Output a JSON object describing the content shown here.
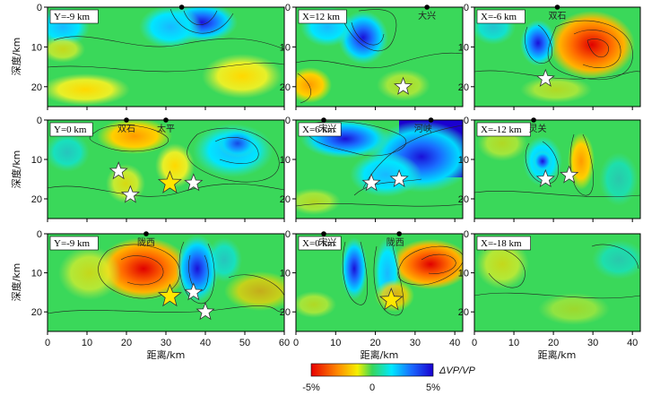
{
  "figure": {
    "ylabel": "深度/km",
    "xlabel": "距离/km",
    "colorbar": {
      "min_label": "-5%",
      "mid_label": "0",
      "max_label": "5%",
      "title": "ΔVP/VP"
    }
  },
  "chart_data": [
    {
      "type": "heatmap",
      "row": 0,
      "col": 0,
      "label": "Y=-9 km",
      "xlim": [
        0,
        60
      ],
      "ylim": [
        0,
        25
      ],
      "stations": [
        34
      ],
      "places": [],
      "events": []
    },
    {
      "type": "heatmap",
      "row": 0,
      "col": 1,
      "label": "X=12 km",
      "xlim": [
        0,
        42
      ],
      "ylim": [
        0,
        25
      ],
      "stations": [
        33
      ],
      "places": [
        {
          "text": "大兴",
          "x": 33
        }
      ],
      "events": [
        {
          "x": 27,
          "y": 20,
          "color": "white"
        }
      ]
    },
    {
      "type": "heatmap",
      "row": 0,
      "col": 2,
      "label": "X=-6 km",
      "xlim": [
        0,
        42
      ],
      "ylim": [
        0,
        25
      ],
      "stations": [
        21
      ],
      "places": [
        {
          "text": "双石",
          "x": 21
        }
      ],
      "events": [
        {
          "x": 18,
          "y": 18,
          "color": "white"
        }
      ]
    },
    {
      "type": "heatmap",
      "row": 1,
      "col": 0,
      "label": "Y=0 km",
      "xlim": [
        0,
        60
      ],
      "ylim": [
        0,
        25
      ],
      "stations": [
        20,
        30
      ],
      "places": [
        {
          "text": "双石",
          "x": 20
        },
        {
          "text": "太平",
          "x": 30
        }
      ],
      "events": [
        {
          "x": 18,
          "y": 13,
          "color": "white"
        },
        {
          "x": 21,
          "y": 19,
          "color": "white"
        },
        {
          "x": 31,
          "y": 16,
          "color": "yellow"
        },
        {
          "x": 37,
          "y": 16,
          "color": "white"
        }
      ]
    },
    {
      "type": "heatmap",
      "row": 1,
      "col": 1,
      "label": "X=6 km",
      "xlim": [
        0,
        42
      ],
      "ylim": [
        0,
        25
      ],
      "stations": [
        7,
        34
      ],
      "places": [
        {
          "text": "宋兴",
          "x": 8
        },
        {
          "text": "河峡",
          "x": 32
        }
      ],
      "events": [
        {
          "x": 19,
          "y": 16,
          "color": "white"
        },
        {
          "x": 26,
          "y": 15,
          "color": "white"
        }
      ]
    },
    {
      "type": "heatmap",
      "row": 1,
      "col": 2,
      "label": "X=-12 km",
      "xlim": [
        0,
        42
      ],
      "ylim": [
        0,
        25
      ],
      "stations": [
        15
      ],
      "places": [
        {
          "text": "灵关",
          "x": 16
        }
      ],
      "events": [
        {
          "x": 18,
          "y": 15,
          "color": "white"
        },
        {
          "x": 24,
          "y": 14,
          "color": "white"
        }
      ]
    },
    {
      "type": "heatmap",
      "row": 2,
      "col": 0,
      "label": "Y=-9 km",
      "xlim": [
        0,
        60
      ],
      "ylim": [
        0,
        25
      ],
      "stations": [
        25
      ],
      "places": [
        {
          "text": "陇西",
          "x": 25
        }
      ],
      "events": [
        {
          "x": 31,
          "y": 16,
          "color": "yellow"
        },
        {
          "x": 37,
          "y": 15,
          "color": "white"
        },
        {
          "x": 40,
          "y": 20,
          "color": "white"
        }
      ]
    },
    {
      "type": "heatmap",
      "row": 2,
      "col": 1,
      "label": "X=0 km",
      "xlim": [
        0,
        42
      ],
      "ylim": [
        0,
        25
      ],
      "stations": [
        7,
        26
      ],
      "places": [
        {
          "text": "宋兴",
          "x": 8
        },
        {
          "text": "陇西",
          "x": 25
        }
      ],
      "events": [
        {
          "x": 24,
          "y": 17,
          "color": "yellow"
        }
      ]
    },
    {
      "type": "heatmap",
      "row": 2,
      "col": 2,
      "label": "X=-18 km",
      "xlim": [
        0,
        42
      ],
      "ylim": [
        0,
        25
      ],
      "stations": [],
      "places": [],
      "events": []
    }
  ]
}
